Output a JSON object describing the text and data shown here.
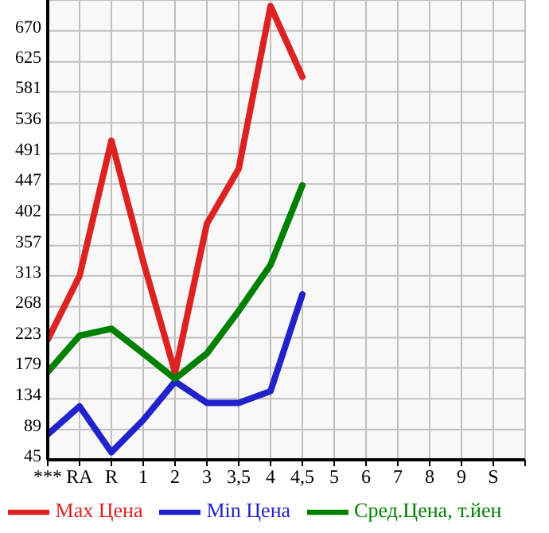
{
  "chart_data": {
    "type": "line",
    "categories": [
      "***",
      "RA",
      "R",
      "1",
      "2",
      "3",
      "3,5",
      "4",
      "4,5",
      "5",
      "6",
      "7",
      "8",
      "9",
      "S"
    ],
    "series": [
      {
        "name": "Max Цена",
        "color": "#dd2222",
        "values": [
          220,
          313,
          510,
          334,
          172,
          389,
          469,
          706,
          603,
          null,
          null,
          null,
          null,
          null,
          null
        ]
      },
      {
        "name": "Min Цена",
        "color": "#2222cc",
        "values": [
          82,
          123,
          56,
          103,
          159,
          128,
          128,
          145,
          286,
          null,
          null,
          null,
          null,
          null,
          null
        ]
      },
      {
        "name": "Сред.Цена, т.йен",
        "color": "#008000",
        "values": [
          173,
          226,
          236,
          200,
          163,
          200,
          262,
          329,
          445,
          null,
          null,
          null,
          null,
          null,
          null
        ]
      }
    ],
    "ylim": [
      45,
      715
    ],
    "yticks": [
      45,
      89,
      134,
      179,
      223,
      268,
      313,
      357,
      402,
      447,
      491,
      536,
      581,
      625,
      670,
      {
        "value": 715,
        "label": null
      }
    ],
    "grid": true,
    "legend": "bottom",
    "marker": "none",
    "line_style": "solid"
  }
}
